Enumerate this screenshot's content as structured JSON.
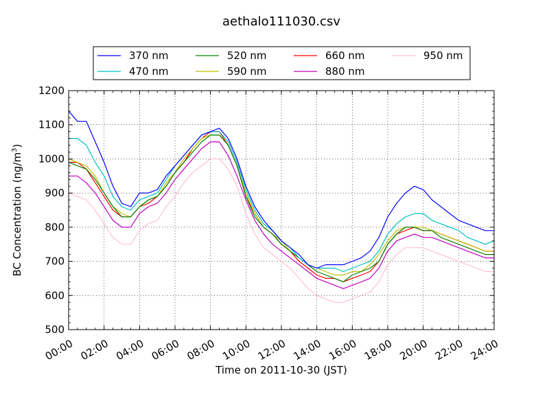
{
  "chart_data": {
    "type": "line",
    "title": "aethalo111030.csv",
    "xlabel": "Time on 2011-10-30 (JST)",
    "ylabel_main": "BC Concentration (ng/m",
    "ylabel_sup": "3",
    "ylabel_end": ")",
    "ylim": [
      500,
      1200
    ],
    "xlim": [
      "00:00",
      "24:00"
    ],
    "grid": true,
    "legend_position": "top-center",
    "x_ticks": [
      "00:00",
      "02:00",
      "04:00",
      "06:00",
      "08:00",
      "10:00",
      "12:00",
      "14:00",
      "16:00",
      "18:00",
      "20:00",
      "22:00",
      "24:00"
    ],
    "y_ticks": [
      "500",
      "600",
      "700",
      "800",
      "900",
      "1000",
      "1100",
      "1200"
    ],
    "x_hours": [
      0,
      0.5,
      1,
      1.5,
      2,
      2.5,
      3,
      3.5,
      4,
      4.5,
      5,
      5.5,
      6,
      6.5,
      7,
      7.5,
      8,
      8.5,
      9,
      9.5,
      10,
      10.5,
      11,
      11.5,
      12,
      12.5,
      13,
      13.5,
      14,
      14.5,
      15,
      15.5,
      16,
      16.5,
      17,
      17.5,
      18,
      18.5,
      19,
      19.5,
      20,
      20.5,
      21,
      21.5,
      22,
      22.5,
      23,
      23.5,
      24
    ],
    "series": [
      {
        "name": "370 nm",
        "color": "#0000ff",
        "values": [
          1140,
          1110,
          1110,
          1050,
          990,
          920,
          870,
          860,
          900,
          900,
          910,
          950,
          980,
          1010,
          1040,
          1070,
          1080,
          1090,
          1060,
          1000,
          920,
          860,
          820,
          790,
          760,
          740,
          720,
          690,
          680,
          690,
          690,
          690,
          700,
          710,
          730,
          770,
          830,
          870,
          900,
          920,
          910,
          880,
          860,
          840,
          820,
          810,
          800,
          790,
          790
        ]
      },
      {
        "name": "470 nm",
        "color": "#00bfbf",
        "values": [
          1060,
          1060,
          1040,
          990,
          950,
          890,
          860,
          850,
          880,
          890,
          900,
          940,
          980,
          1010,
          1040,
          1070,
          1080,
          1080,
          1050,
          990,
          910,
          850,
          810,
          790,
          760,
          740,
          710,
          690,
          680,
          680,
          680,
          670,
          680,
          690,
          700,
          730,
          780,
          810,
          830,
          840,
          840,
          820,
          810,
          800,
          790,
          770,
          760,
          750,
          760
        ]
      },
      {
        "name": "520 nm",
        "color": "#008000",
        "values": [
          990,
          980,
          970,
          940,
          900,
          860,
          830,
          830,
          860,
          880,
          890,
          920,
          960,
          990,
          1020,
          1050,
          1070,
          1070,
          1040,
          980,
          890,
          830,
          800,
          780,
          750,
          730,
          710,
          690,
          670,
          660,
          650,
          640,
          660,
          670,
          680,
          700,
          750,
          780,
          800,
          800,
          790,
          790,
          770,
          760,
          750,
          740,
          730,
          720,
          720
        ]
      },
      {
        "name": "590 nm",
        "color": "#bfbf00",
        "values": [
          1000,
          990,
          980,
          950,
          900,
          860,
          840,
          830,
          860,
          880,
          890,
          930,
          960,
          1000,
          1030,
          1060,
          1070,
          1070,
          1040,
          980,
          900,
          840,
          800,
          780,
          760,
          730,
          710,
          690,
          680,
          670,
          660,
          660,
          670,
          670,
          690,
          720,
          760,
          790,
          800,
          800,
          800,
          790,
          780,
          770,
          760,
          750,
          740,
          730,
          730
        ]
      },
      {
        "name": "660 nm",
        "color": "#ff0000",
        "values": [
          990,
          990,
          970,
          930,
          890,
          850,
          830,
          830,
          860,
          870,
          890,
          920,
          960,
          990,
          1030,
          1060,
          1080,
          1080,
          1040,
          980,
          890,
          840,
          800,
          780,
          750,
          730,
          700,
          680,
          660,
          650,
          650,
          640,
          650,
          660,
          670,
          700,
          750,
          780,
          790,
          800,
          790,
          790,
          780,
          770,
          760,
          750,
          740,
          730,
          730
        ]
      },
      {
        "name": "880 nm",
        "color": "#bf00bf",
        "values": [
          950,
          950,
          930,
          900,
          860,
          820,
          800,
          800,
          840,
          860,
          870,
          900,
          940,
          970,
          1000,
          1030,
          1050,
          1050,
          1010,
          950,
          880,
          820,
          780,
          750,
          730,
          710,
          690,
          670,
          650,
          640,
          630,
          620,
          630,
          640,
          650,
          680,
          730,
          760,
          770,
          780,
          770,
          770,
          760,
          750,
          740,
          730,
          720,
          710,
          710
        ]
      },
      {
        "name": "950 nm",
        "color": "#ffc0cb",
        "values": [
          900,
          890,
          880,
          850,
          810,
          770,
          750,
          750,
          790,
          810,
          820,
          860,
          890,
          930,
          960,
          980,
          1000,
          1000,
          970,
          920,
          840,
          780,
          740,
          720,
          700,
          680,
          650,
          620,
          600,
          590,
          580,
          580,
          590,
          600,
          610,
          640,
          690,
          720,
          740,
          740,
          740,
          730,
          720,
          710,
          700,
          690,
          680,
          670,
          670
        ]
      }
    ]
  }
}
